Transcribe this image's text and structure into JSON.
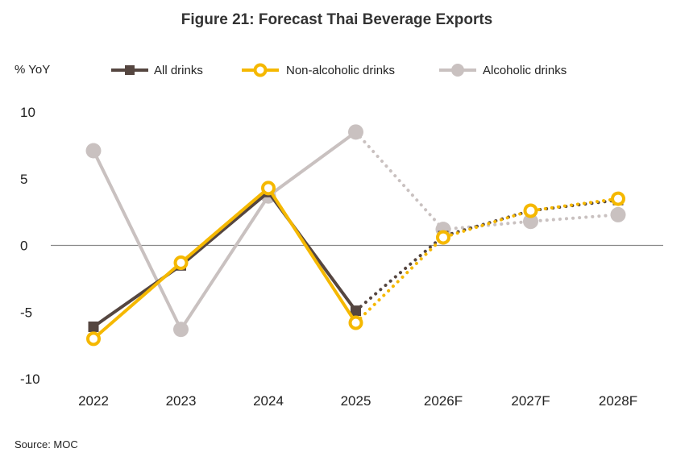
{
  "chart_data": {
    "type": "line",
    "title": "Figure 21: Forecast Thai Beverage Exports",
    "unit_label": "% YoY",
    "source": "Source: MOC",
    "categories": [
      "2022",
      "2023",
      "2024",
      "2025",
      "2026F",
      "2027F",
      "2028F"
    ],
    "yticks": [
      "10",
      "5",
      "0",
      "-5",
      "-10"
    ],
    "ylim": [
      -10,
      10
    ],
    "legend_position": "top",
    "forecast_start_index": 3,
    "series": [
      {
        "name": "All drinks",
        "color": "#554640",
        "marker": "square",
        "values": [
          -6.1,
          -1.5,
          4.0,
          -4.9,
          0.7,
          2.6,
          3.4
        ]
      },
      {
        "name": "Non-alcoholic drinks",
        "color": "#F5B800",
        "marker": "hollow-circle",
        "values": [
          -7.0,
          -1.3,
          4.3,
          -5.8,
          0.6,
          2.6,
          3.5
        ]
      },
      {
        "name": "Alcoholic drinks",
        "color": "#C9C1C0",
        "marker": "filled-circle",
        "values": [
          7.1,
          -6.3,
          3.7,
          8.5,
          1.2,
          1.8,
          2.3
        ]
      }
    ]
  }
}
